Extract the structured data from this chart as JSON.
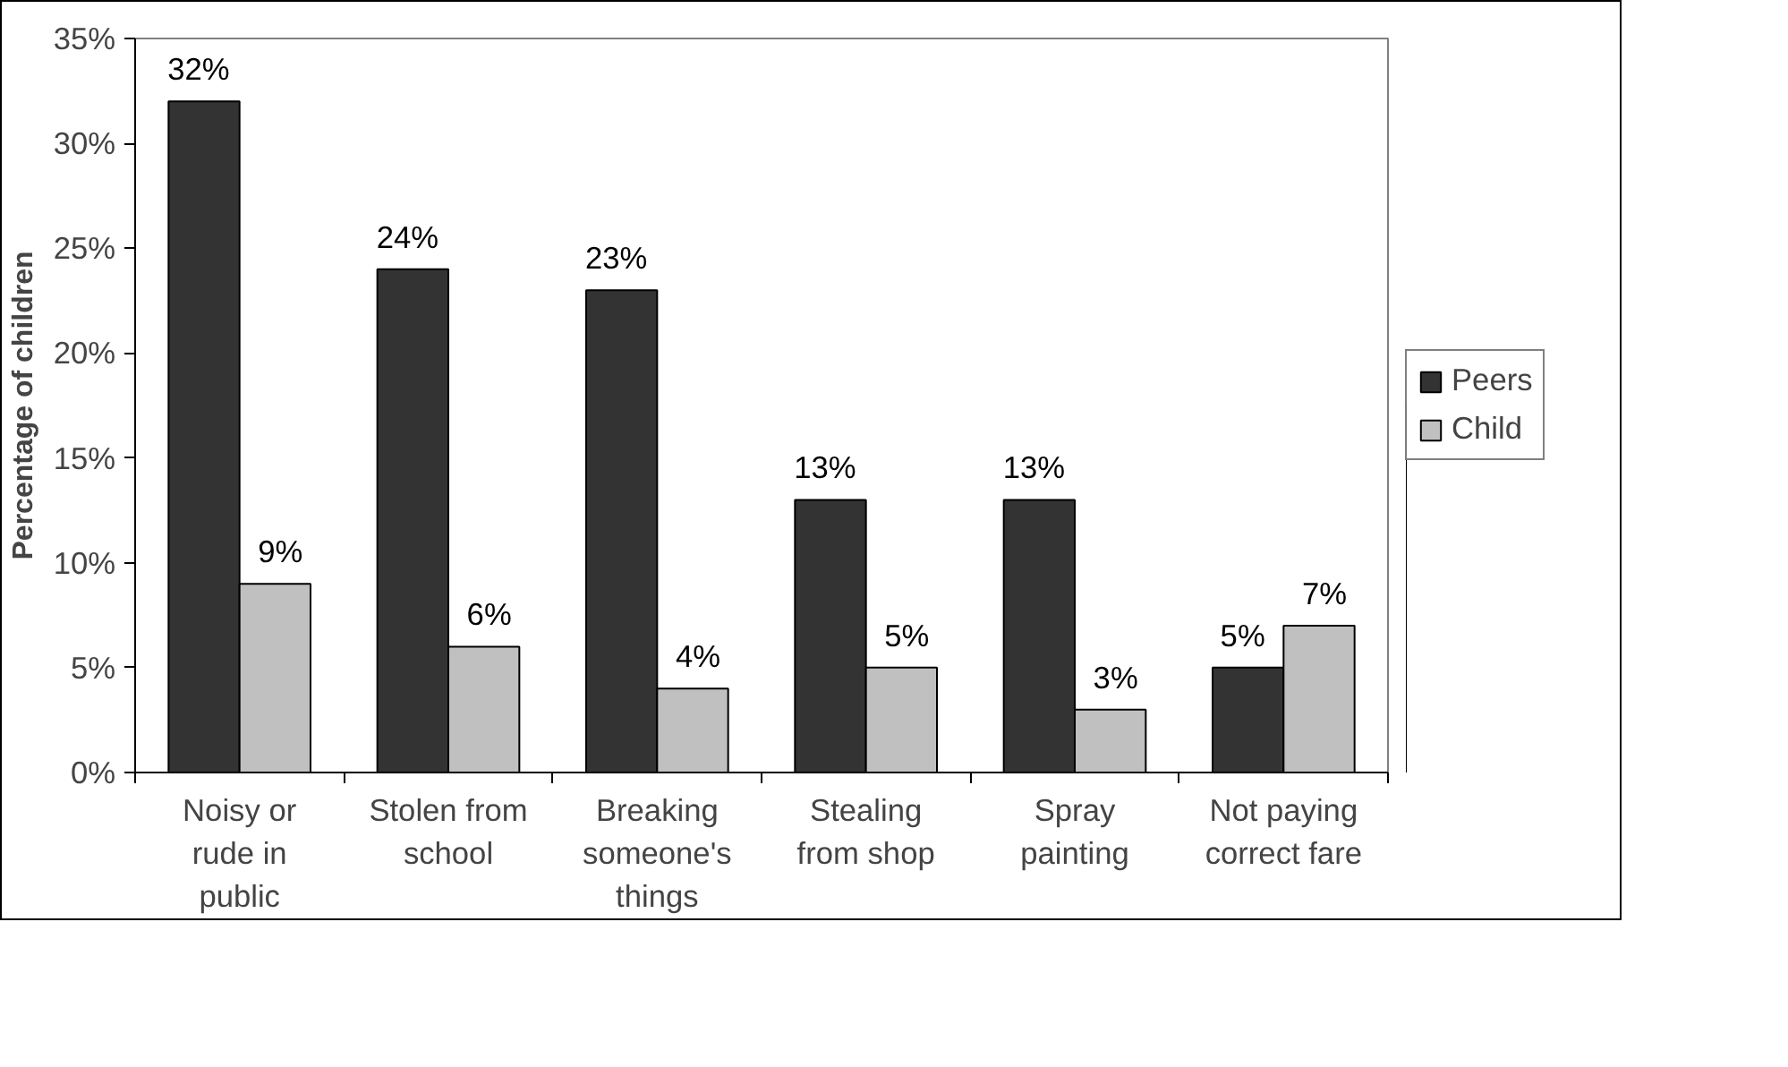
{
  "chart_data": {
    "type": "bar",
    "ylabel": "Percentage of children",
    "categories": [
      "Noisy or\nrude in\npublic",
      "Stolen from\nschool",
      "Breaking\nsomeone's\nthings",
      "Stealing\nfrom shop",
      "Spray\npainting",
      "Not paying\ncorrect fare"
    ],
    "series": [
      {
        "name": "Peers",
        "color": "#333333",
        "values": [
          32,
          24,
          23,
          13,
          13,
          5
        ],
        "value_labels": [
          "32%",
          "24%",
          "23%",
          "13%",
          "13%",
          "5%"
        ]
      },
      {
        "name": "Child",
        "color": "#c0c0c0",
        "values": [
          9,
          6,
          4,
          5,
          3,
          7
        ],
        "value_labels": [
          "9%",
          "6%",
          "4%",
          "5%",
          "3%",
          "7%"
        ]
      }
    ],
    "ylim": [
      0,
      35
    ],
    "yticks": [
      {
        "value": 0,
        "label": "0%"
      },
      {
        "value": 5,
        "label": "5%"
      },
      {
        "value": 10,
        "label": "10%"
      },
      {
        "value": 15,
        "label": "15%"
      },
      {
        "value": 20,
        "label": "20%"
      },
      {
        "value": 25,
        "label": "25%"
      },
      {
        "value": 30,
        "label": "30%"
      },
      {
        "value": 35,
        "label": "35%"
      }
    ],
    "grid": false,
    "legend": "right"
  }
}
